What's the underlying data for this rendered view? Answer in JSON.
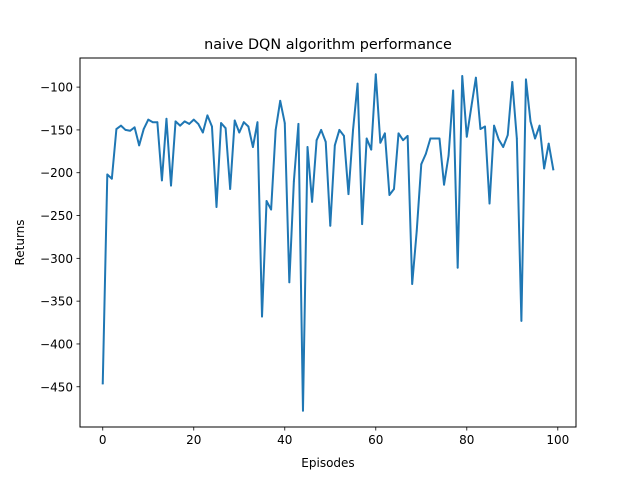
{
  "chart_data": {
    "type": "line",
    "title": "naive DQN algorithm performance",
    "xlabel": "Episodes",
    "ylabel": "Returns",
    "xlim": [
      -5,
      104
    ],
    "ylim": [
      -497,
      -66
    ],
    "xticks": [
      0,
      20,
      40,
      60,
      80,
      100
    ],
    "yticks": [
      -450,
      -400,
      -350,
      -300,
      -250,
      -200,
      -150,
      -100
    ],
    "xtick_labels": [
      "0",
      "20",
      "40",
      "60",
      "80",
      "100"
    ],
    "ytick_labels": [
      "−450",
      "−400",
      "−350",
      "−300",
      "−250",
      "−200",
      "−150",
      "−100"
    ],
    "grid": false,
    "series": [
      {
        "color": "#1f77b4",
        "x": [
          0,
          1,
          2,
          3,
          4,
          5,
          6,
          7,
          8,
          9,
          10,
          11,
          12,
          13,
          14,
          15,
          16,
          17,
          18,
          19,
          20,
          21,
          22,
          23,
          24,
          25,
          26,
          27,
          28,
          29,
          30,
          31,
          32,
          33,
          34,
          35,
          36,
          37,
          38,
          39,
          40,
          41,
          42,
          43,
          44,
          45,
          46,
          47,
          48,
          49,
          50,
          51,
          52,
          53,
          54,
          55,
          56,
          57,
          58,
          59,
          60,
          61,
          62,
          63,
          64,
          65,
          66,
          67,
          68,
          69,
          70,
          71,
          72,
          73,
          74,
          75,
          76,
          77,
          78,
          79,
          80,
          81,
          82,
          83,
          84,
          85,
          86,
          87,
          88,
          89,
          90,
          91,
          92,
          93,
          94,
          95,
          96,
          97,
          98,
          99
        ],
        "values": [
          -446,
          -202,
          -207,
          -149,
          -145,
          -150,
          -151,
          -147,
          -168,
          -149,
          -138,
          -141,
          -141,
          -209,
          -137,
          -215,
          -140,
          -145,
          -140,
          -143,
          -138,
          -143,
          -153,
          -133,
          -146,
          -240,
          -142,
          -148,
          -219,
          -139,
          -153,
          -141,
          -146,
          -170,
          -141,
          -368,
          -233,
          -243,
          -150,
          -116,
          -142,
          -328,
          -210,
          -143,
          -478,
          -170,
          -234,
          -162,
          -150,
          -164,
          -262,
          -168,
          -150,
          -157,
          -225,
          -150,
          -96,
          -260,
          -160,
          -173,
          -85,
          -165,
          -154,
          -226,
          -219,
          -154,
          -162,
          -157,
          -330,
          -268,
          -190,
          -178,
          -160,
          -160,
          -160,
          -214,
          -180,
          -104,
          -311,
          -87,
          -158,
          -123,
          -89,
          -149,
          -146,
          -236,
          -145,
          -161,
          -170,
          -156,
          -94,
          -160,
          -373,
          -91,
          -140,
          -160,
          -145,
          -195,
          -166,
          -196
        ]
      }
    ]
  }
}
